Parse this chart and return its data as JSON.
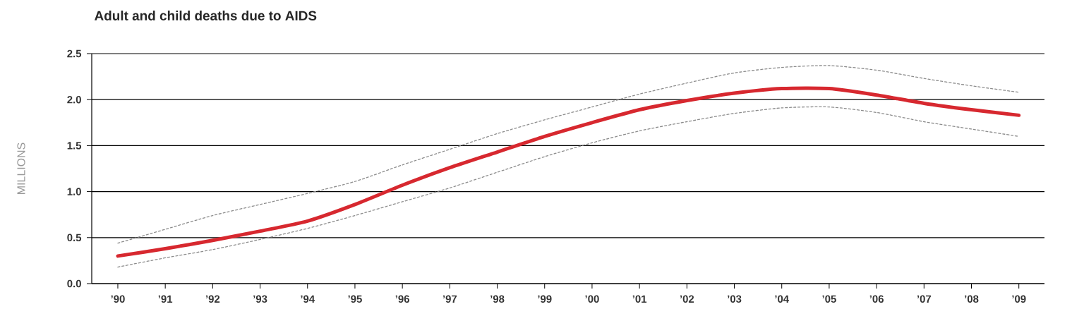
{
  "chart_data": {
    "type": "line",
    "title": "Adult and child deaths due to AIDS",
    "ylabel": "MILLIONS",
    "categories": [
      "’90",
      "’91",
      "’92",
      "’93",
      "’94",
      "’95",
      "’96",
      "’97",
      "’98",
      "’99",
      "’00",
      "’01",
      "’02",
      "’03",
      "’04",
      "’05",
      "’06",
      "’07",
      "’08",
      "’09"
    ],
    "series": [
      {
        "color": "#8c8c8c",
        "line_style": "dashed",
        "values": [
          0.44,
          0.59,
          0.74,
          0.86,
          0.98,
          1.11,
          1.29,
          1.46,
          1.63,
          1.78,
          1.92,
          2.06,
          2.18,
          2.29,
          2.35,
          2.37,
          2.32,
          2.23,
          2.15,
          2.08
        ]
      },
      {
        "color": "#8c8c8c",
        "line_style": "dashed",
        "values": [
          0.18,
          0.28,
          0.37,
          0.48,
          0.6,
          0.74,
          0.89,
          1.04,
          1.21,
          1.38,
          1.53,
          1.66,
          1.76,
          1.85,
          1.91,
          1.92,
          1.86,
          1.76,
          1.68,
          1.6
        ]
      },
      {
        "color": "#d7282f",
        "values": [
          0.3,
          0.38,
          0.47,
          0.57,
          0.68,
          0.86,
          1.07,
          1.26,
          1.43,
          1.6,
          1.75,
          1.89,
          1.99,
          2.07,
          2.12,
          2.12,
          2.05,
          1.96,
          1.89,
          1.83
        ]
      }
    ],
    "ylim": [
      0,
      2.5
    ],
    "yticks": [
      {
        "value": 0,
        "label": "0.0"
      },
      {
        "value": 0.5,
        "label": "0.5"
      },
      {
        "value": 1,
        "label": "1.0"
      },
      {
        "value": 1.5,
        "label": "1.5"
      },
      {
        "value": 2,
        "label": "2.0"
      },
      {
        "value": 2.5,
        "label": "2.5"
      }
    ],
    "grid": "y",
    "legend": false,
    "marker": "none",
    "line_style": "solid"
  }
}
